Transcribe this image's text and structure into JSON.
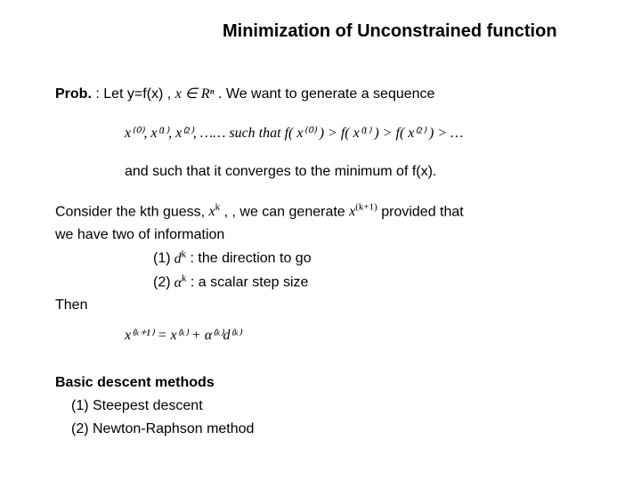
{
  "title": "Minimization of Unconstrained function",
  "prob_label": "Prob.",
  "prob_text1": " : Let y=f(x) , ",
  "prob_math1": "x ∈ Rⁿ",
  "prob_text2": " . We want to generate a sequence",
  "sequence_math": "x⁽⁰⁾, x⁽¹⁾, x⁽²⁾, ……  such that  f( x⁽⁰⁾ ) > f( x⁽¹⁾ ) > f( x⁽²⁾ ) > …",
  "converge_text": "and such that it converges to the minimum of f(x).",
  "consider_text1": "Consider the kth guess, ",
  "consider_math1": "x",
  "consider_sup1": "k",
  "consider_text2": " , , we can generate ",
  "consider_math2": "x",
  "consider_sup2": "(k+1)",
  "consider_text3": " provided that",
  "consider_line2": "we have two of information",
  "item1_num": "(1)",
  "item1_math": "d",
  "item1_sup": "k",
  "item1_text": " : the direction to go",
  "item2_num": "(2)",
  "item2_math": "α",
  "item2_sup": "k",
  "item2_text": " : a scalar step size",
  "then_text": "Then",
  "then_math": "x⁽ᵏ⁺¹⁾ = x⁽ᵏ⁾ + α⁽ᵏ⁾d⁽ᵏ⁾",
  "basic_heading": "Basic descent methods",
  "basic_item1": "(1) Steepest descent",
  "basic_item2": "(2) Newton-Raphson method",
  "colors": {
    "background": "#ffffff",
    "text": "#000000"
  },
  "fonts": {
    "title_size": 20,
    "body_size": 16,
    "title_weight": "bold"
  }
}
